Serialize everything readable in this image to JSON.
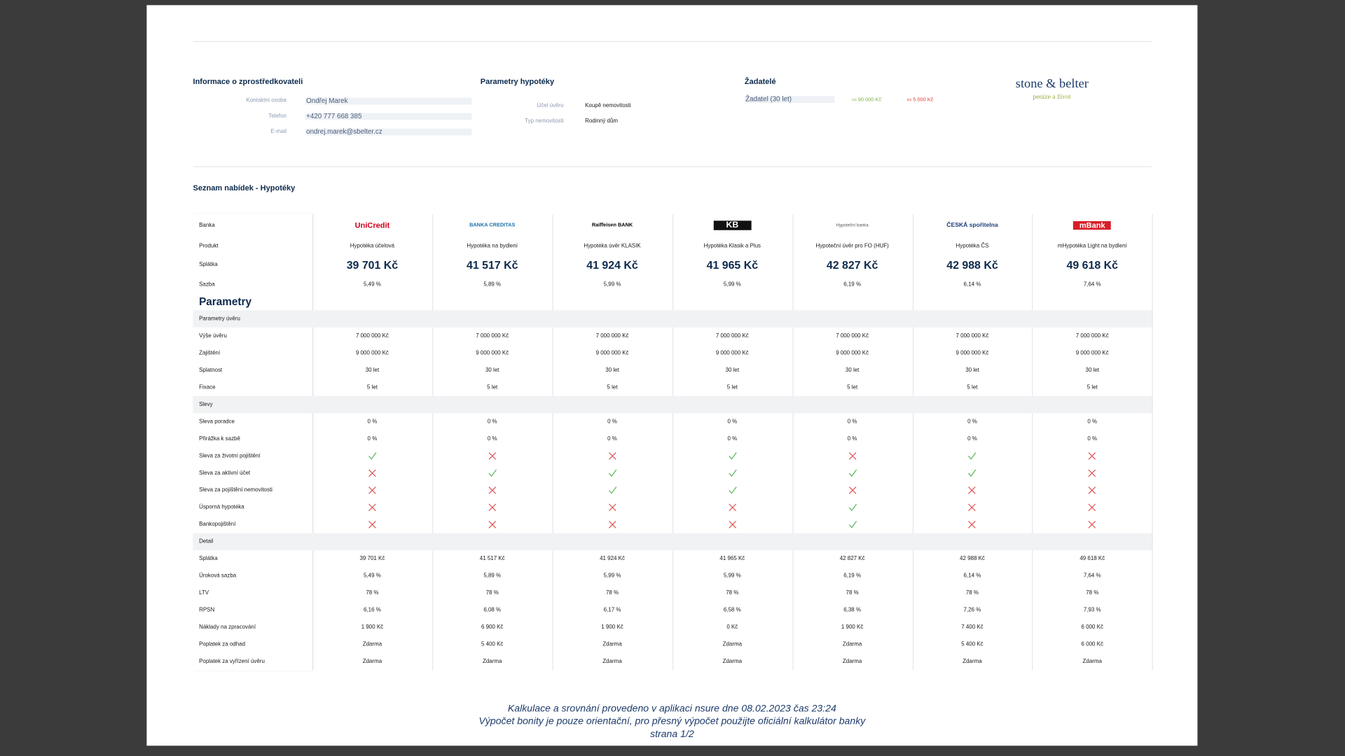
{
  "header": {
    "broker": {
      "title": "Informace o zprostředkovateli",
      "fields": [
        {
          "label": "Kontaktní osoba",
          "value": "Ondřej Marek"
        },
        {
          "label": "Telefon",
          "value": "+420 777 668 385"
        },
        {
          "label": "E-mail",
          "value": "ondrej.marek@sbelter.cz"
        }
      ]
    },
    "mortgage": {
      "title": "Parametry hypotéky",
      "fields": [
        {
          "label": "Účel úvěru",
          "value": "Koupě nemovitosti"
        },
        {
          "label": "Typ nemovitosti",
          "value": "Rodinný dům"
        }
      ]
    },
    "applicants": {
      "title": "Žadatelé",
      "applicant": "Žadatel  (30 let)",
      "income": "90 000 Kč",
      "expense": "5 000 Kč"
    },
    "logo": {
      "name": "stone & belter",
      "tagline": "peníze a život"
    }
  },
  "list_title": "Seznam nabídek - Hypotéky",
  "table": {
    "top_rows": [
      {
        "label": "Banka",
        "values": [
          "UniCredit",
          "BANKA CREDITAS",
          "Raiffeisen BANK",
          "KB",
          "Hypoteční banka",
          "ČESKÁ spořitelna",
          "mBank"
        ]
      },
      {
        "label": "Produkt",
        "values": [
          "Hypotéka účelová",
          "Hypotéka na bydlení",
          "Hypotéka úvěr KLASIK",
          "Hypotéka Klasik a Plus",
          "Hypoteční úvěr pro FO (HUF)",
          "Hypotéka ČS",
          "mHypotéka Light na bydlení"
        ]
      },
      {
        "label": "Splátka",
        "values": [
          "39 701 Kč",
          "41 517 Kč",
          "41 924 Kč",
          "41 965 Kč",
          "42 827 Kč",
          "42 988 Kč",
          "49 618 Kč"
        ]
      },
      {
        "label": "Sazba",
        "values": [
          "5,49 %",
          "5,89 %",
          "5,99 %",
          "5,99 %",
          "6,19 %",
          "6,14 %",
          "7,64 %"
        ]
      }
    ],
    "heading": "Parametry",
    "sections": [
      {
        "title": "Parametry úvěru",
        "rows": [
          {
            "label": "Výše úvěru",
            "values": [
              "7 000 000 Kč",
              "7 000 000 Kč",
              "7 000 000 Kč",
              "7 000 000 Kč",
              "7 000 000 Kč",
              "7 000 000 Kč",
              "7 000 000 Kč"
            ]
          },
          {
            "label": "Zajištění",
            "values": [
              "9 000 000 Kč",
              "9 000 000 Kč",
              "9 000 000 Kč",
              "9 000 000 Kč",
              "9 000 000 Kč",
              "9 000 000 Kč",
              "9 000 000 Kč"
            ]
          },
          {
            "label": "Splatnost",
            "values": [
              "30 let",
              "30 let",
              "30 let",
              "30 let",
              "30 let",
              "30 let",
              "30 let"
            ]
          },
          {
            "label": "Fixace",
            "values": [
              "5 let",
              "5 let",
              "5 let",
              "5 let",
              "5 let",
              "5 let",
              "5 let"
            ]
          }
        ]
      },
      {
        "title": "Slevy",
        "rows": [
          {
            "label": "Sleva poradce",
            "values": [
              "0 %",
              "0 %",
              "0 %",
              "0 %",
              "0 %",
              "0 %",
              "0 %"
            ]
          },
          {
            "label": "Přirážka k sazbě",
            "values": [
              "0 %",
              "0 %",
              "0 %",
              "0 %",
              "0 %",
              "0 %",
              "0 %"
            ]
          },
          {
            "label": "Sleva za životní pojištění",
            "values": [
              true,
              false,
              false,
              true,
              false,
              true,
              false
            ]
          },
          {
            "label": "Sleva za aktivní účet",
            "values": [
              false,
              true,
              true,
              true,
              true,
              true,
              false
            ]
          },
          {
            "label": "Sleva za pojištění nemovitosti",
            "values": [
              false,
              false,
              true,
              true,
              false,
              false,
              false
            ]
          },
          {
            "label": "Úsporná hypotéka",
            "values": [
              false,
              false,
              false,
              false,
              true,
              false,
              false
            ]
          },
          {
            "label": "Bankopojištění",
            "values": [
              false,
              false,
              false,
              false,
              true,
              false,
              false
            ]
          }
        ]
      },
      {
        "title": "Detail",
        "rows": [
          {
            "label": "Splátka",
            "values": [
              "39 701 Kč",
              "41 517 Kč",
              "41 924 Kč",
              "41 965 Kč",
              "42 827 Kč",
              "42 988 Kč",
              "49 618 Kč"
            ]
          },
          {
            "label": "Úroková sazba",
            "values": [
              "5,49 %",
              "5,89 %",
              "5,99 %",
              "5,99 %",
              "6,19 %",
              "6,14 %",
              "7,64 %"
            ]
          },
          {
            "label": "LTV",
            "values": [
              "78 %",
              "78 %",
              "78 %",
              "78 %",
              "78 %",
              "78 %",
              "78 %"
            ]
          },
          {
            "label": "RPSN",
            "values": [
              "6,16 %",
              "6,08 %",
              "6,17 %",
              "6,58 %",
              "6,38 %",
              "7,26 %",
              "7,93 %"
            ]
          },
          {
            "label": "Náklady na zpracování",
            "values": [
              "1 900 Kč",
              "6 900 Kč",
              "1 900 Kč",
              "0 Kč",
              "1 900 Kč",
              "7 400 Kč",
              "6 000 Kč"
            ]
          },
          {
            "label": "Poplatek za odhad",
            "values": [
              "Zdarma",
              "5 400 Kč",
              "Zdarma",
              "Zdarma",
              "Zdarma",
              "5 400 Kč",
              "6 000 Kč"
            ]
          },
          {
            "label": "Poplatek za vyřízení úvěru",
            "values": [
              "Zdarma",
              "Zdarma",
              "Zdarma",
              "Zdarma",
              "Zdarma",
              "Zdarma",
              "Zdarma"
            ]
          }
        ]
      }
    ]
  },
  "footer": [
    "Kalkulace a srovnání provedeno v aplikaci nsure dne 08.02.2023 čas 23:24",
    "Výpočet bonity je pouze orientační, pro přesný výpočet použijte oficiální kalkulátor banky",
    "strana 1/2"
  ]
}
